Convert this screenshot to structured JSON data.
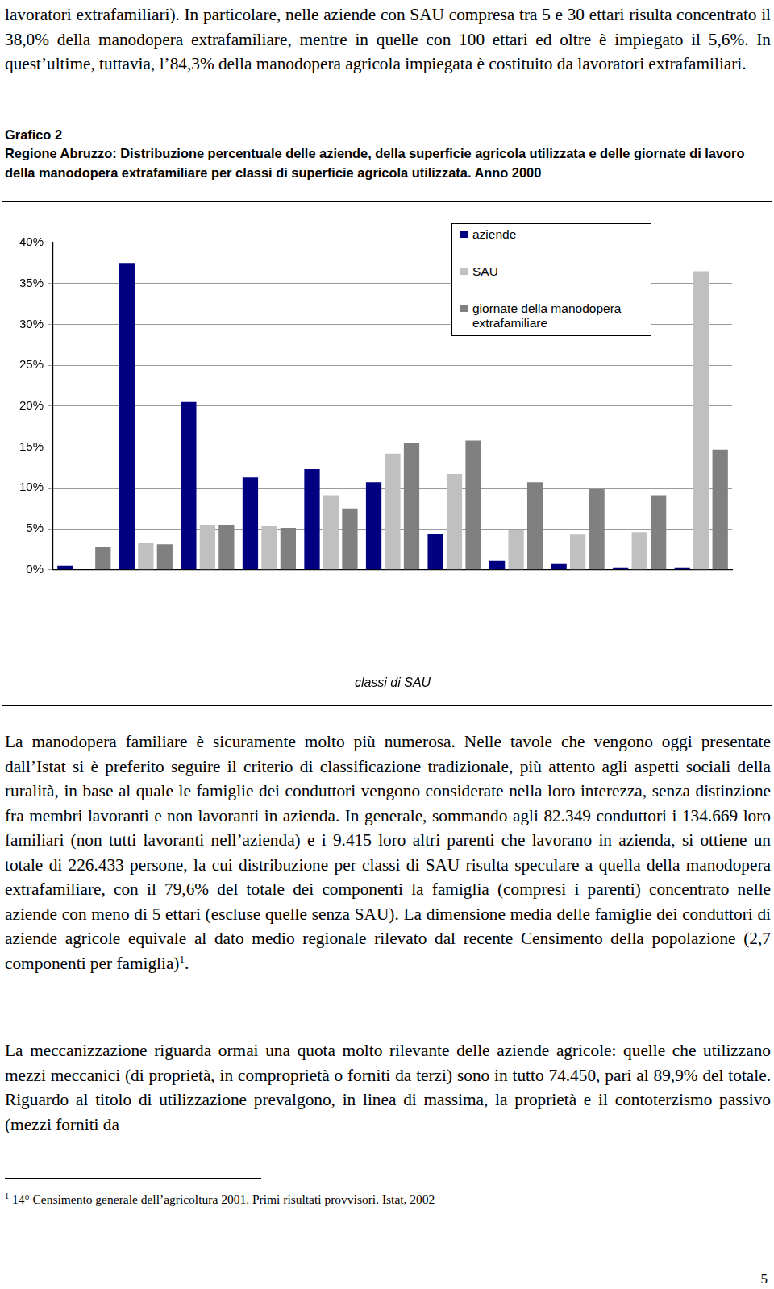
{
  "page": {
    "paragraphs_before": [
      "lavoratori extrafamiliari). In particolare, nelle aziende con SAU compresa tra 5 e 30 ettari risulta concentrato il 38,0% della manodopera extrafamiliare, mentre in quelle con 100 ettari ed oltre è impiegato il 5,6%. In quest’ultime, tuttavia, l’84,3% della manodopera agricola impiegata è costituito da lavoratori extrafamiliari."
    ],
    "figure_label": "Grafico 2",
    "paragraphs_after": [
      {
        "text": "La manodopera familiare è sicuramente molto più numerosa. Nelle tavole che vengono oggi presentate dall’Istat si è preferito seguire il criterio di classificazione tradizionale, più attento agli aspetti sociali della ruralità, in base al quale le famiglie dei conduttori vengono considerate nella loro interezza, senza distinzione fra membri lavoranti e non lavoranti in azienda. In generale, sommando agli 82.349 conduttori i 134.669 loro familiari (non tutti lavoranti nell’azienda) e i 9.415 loro altri parenti che lavorano in azienda, si ottiene un totale di 226.433 persone, la cui distribuzione per classi di SAU risulta speculare a quella della manodopera extrafamiliare, con il 79,6% del totale dei componenti la famiglia (compresi i parenti) concentrato nelle aziende con meno di 5 ettari (escluse quelle senza SAU). La dimensione media delle famiglie dei conduttori di aziende agricole equivale al dato medio regionale rilevato dal recente Censimento della popolazione (2,7 componenti per famiglia)",
        "footnote_ref": "1",
        "text_after": "."
      },
      {
        "text": "La meccanizzazione riguarda ormai una quota molto rilevante delle aziende agricole: quelle che utilizzano mezzi meccanici (di proprietà, in comproprietà o forniti da terzi) sono in tutto 74.450, pari al 89,9% del totale. Riguardo al titolo di utilizzazione prevalgono, in linea di massima, la proprietà e il contoterzismo passivo (mezzi forniti da"
      }
    ],
    "footnote": {
      "marker": "1",
      "text": "14° Censimento generale dell’agricoltura 2001. Primi risultati provvisori. Istat, 2002"
    },
    "page_number": "5"
  },
  "chart_data": {
    "type": "bar",
    "title": "Regione Abruzzo: Distribuzione percentuale delle aziende, della superficie agricola utilizzata e delle giornate di lavoro della manodopera extrafamiliare per classi di superficie agricola utilizzata. Anno 2000",
    "x_label": "classi di SAU",
    "categories": [
      null,
      null,
      null,
      null,
      null,
      null,
      null,
      null,
      null,
      null,
      null
    ],
    "series": [
      {
        "name": "aziende",
        "color": "#000080",
        "values": [
          0.5,
          37.5,
          20.5,
          11.3,
          12.3,
          10.7,
          4.4,
          1.1,
          0.7,
          0.3,
          0.3
        ]
      },
      {
        "name": "SAU",
        "color": "#c0c0c0",
        "values": [
          0,
          3.3,
          5.5,
          5.3,
          9.1,
          14.2,
          11.7,
          4.8,
          4.3,
          4.6,
          36.5
        ]
      },
      {
        "name": "giornate della manodopera extrafamiliare",
        "color": "#808080",
        "values": [
          2.8,
          3.1,
          5.5,
          5.1,
          7.5,
          15.5,
          15.8,
          10.7,
          9.9,
          9.1,
          14.7
        ]
      }
    ],
    "ylim": [
      0,
      40
    ],
    "yticks": [
      {
        "value": 0,
        "label": "0%"
      },
      {
        "value": 5,
        "label": "5%"
      },
      {
        "value": 10,
        "label": "10%"
      },
      {
        "value": 15,
        "label": "15%"
      },
      {
        "value": 20,
        "label": "20%"
      },
      {
        "value": 25,
        "label": "25%"
      },
      {
        "value": 30,
        "label": "30%"
      },
      {
        "value": 35,
        "label": "35%"
      },
      {
        "value": 40,
        "label": "40%"
      }
    ],
    "grid": true,
    "legend": "top-right",
    "tick_labels": "y"
  }
}
